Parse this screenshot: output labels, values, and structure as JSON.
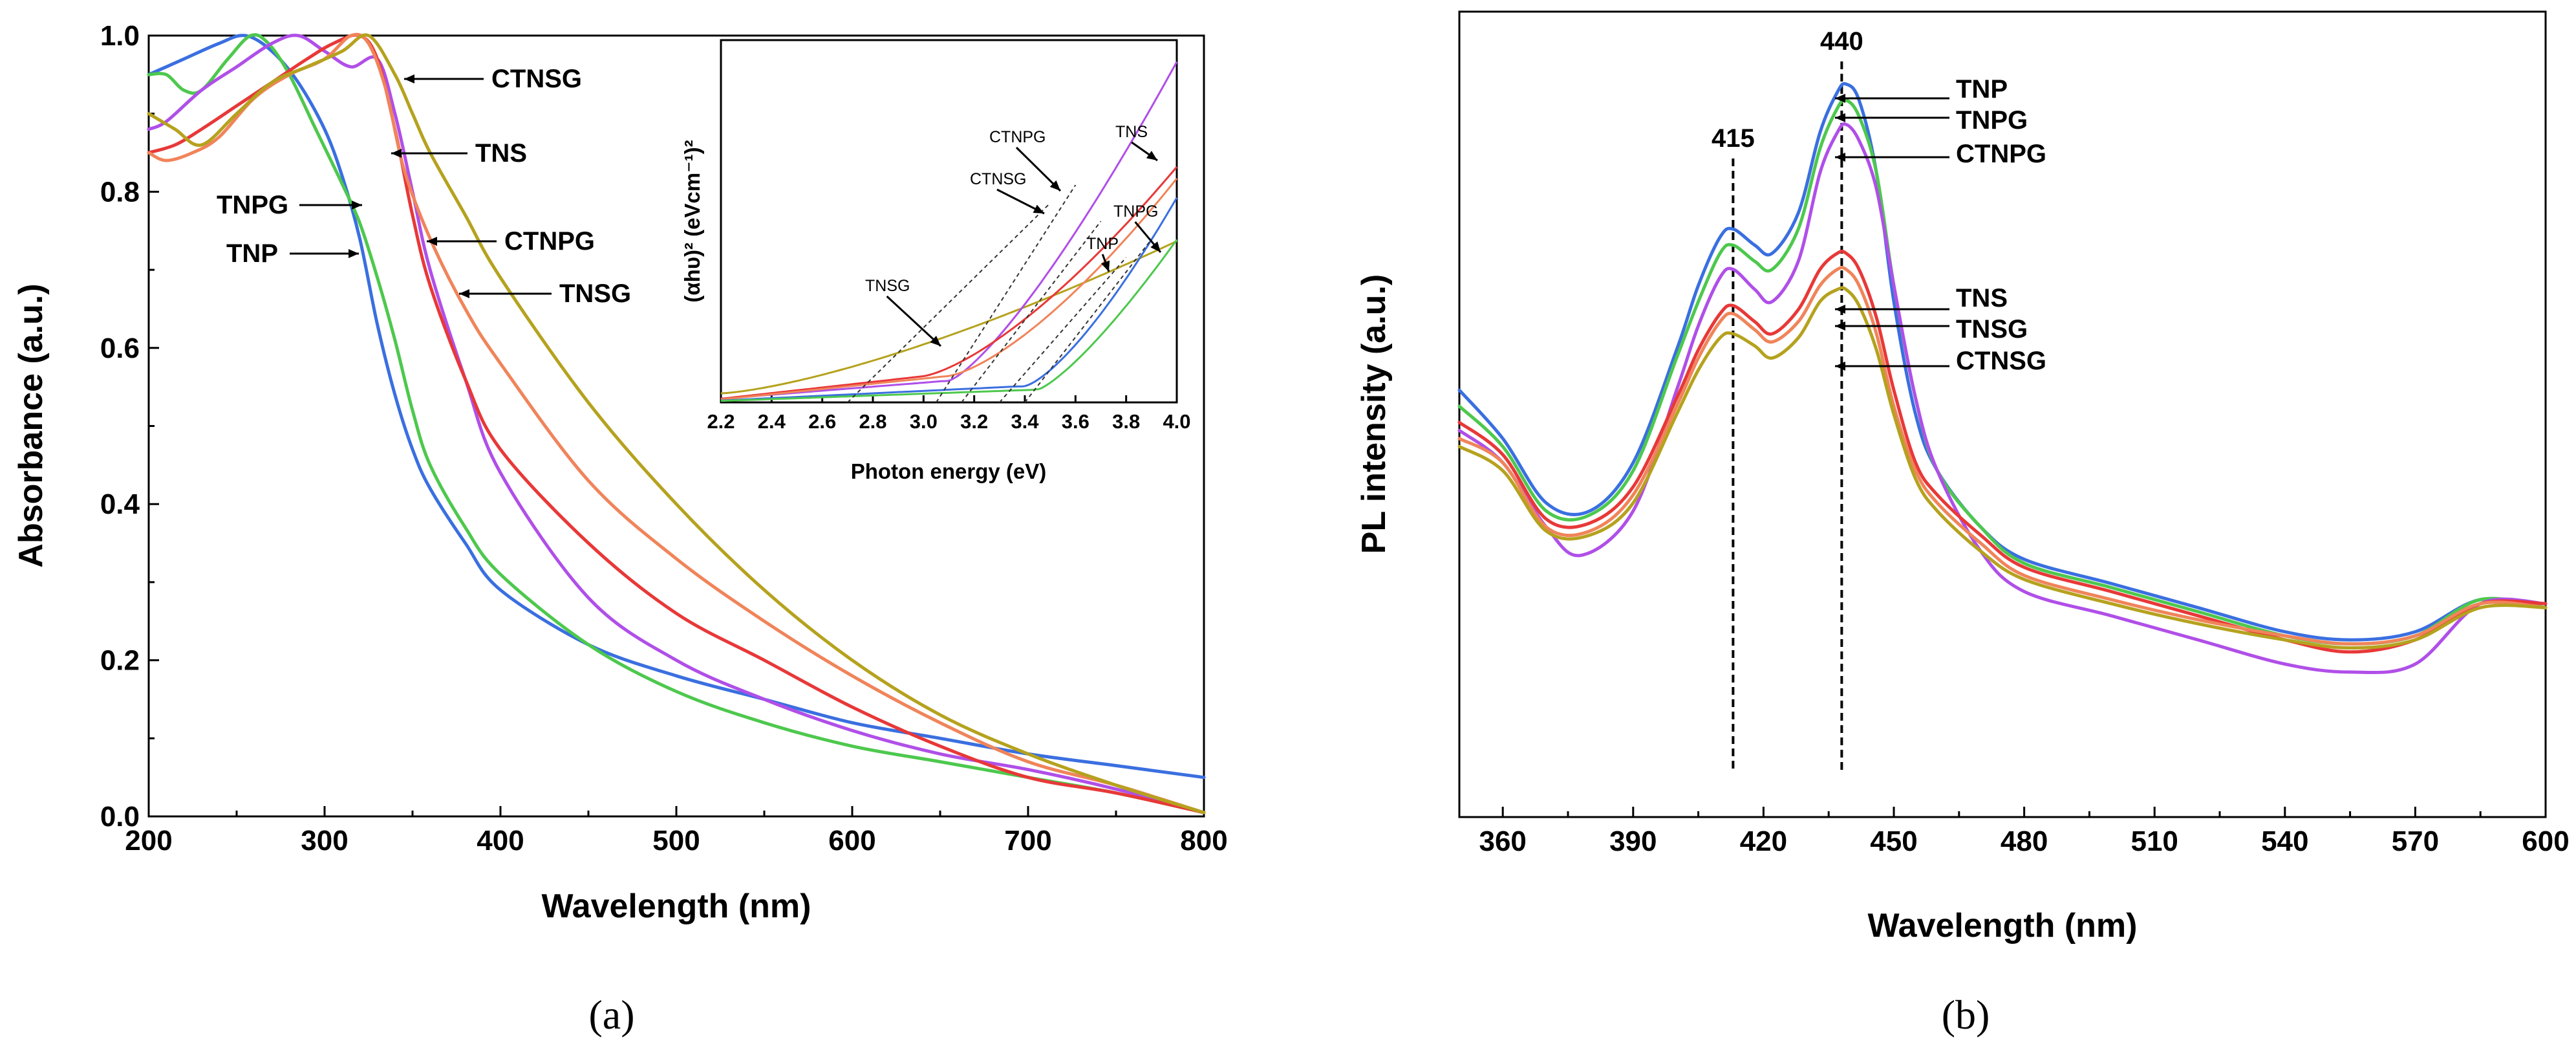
{
  "chart_data": [
    {
      "id": "a",
      "type": "line",
      "caption": "(a)",
      "xlabel": "Wavelength (nm)",
      "ylabel": "Absorbance (a.u.)",
      "xlim": [
        200,
        800
      ],
      "ylim": [
        0.0,
        1.0
      ],
      "xticks": [
        200,
        300,
        400,
        500,
        600,
        700,
        800
      ],
      "yticks": [
        0.0,
        0.2,
        0.4,
        0.6,
        0.8,
        1.0
      ],
      "series": [
        {
          "name": "TNP",
          "color": "#3a6fe0",
          "x": [
            200,
            210,
            220,
            240,
            255,
            270,
            285,
            300,
            310,
            320,
            330,
            340,
            350,
            360,
            380,
            400,
            450,
            500,
            550,
            600,
            650,
            700,
            750,
            800
          ],
          "y": [
            0.95,
            0.96,
            0.97,
            0.99,
            1.0,
            0.98,
            0.94,
            0.88,
            0.82,
            0.74,
            0.63,
            0.54,
            0.47,
            0.42,
            0.35,
            0.29,
            0.22,
            0.18,
            0.15,
            0.12,
            0.1,
            0.08,
            0.065,
            0.05
          ]
        },
        {
          "name": "TNPG",
          "color": "#4dc84d",
          "x": [
            200,
            210,
            220,
            230,
            245,
            258,
            268,
            280,
            295,
            310,
            320,
            330,
            340,
            350,
            360,
            380,
            400,
            450,
            500,
            550,
            600,
            650,
            700,
            750,
            800
          ],
          "y": [
            0.95,
            0.95,
            0.93,
            0.93,
            0.97,
            1.0,
            0.99,
            0.95,
            0.88,
            0.81,
            0.76,
            0.69,
            0.61,
            0.52,
            0.45,
            0.37,
            0.31,
            0.22,
            0.16,
            0.12,
            0.09,
            0.07,
            0.05,
            0.03,
            0.005
          ]
        },
        {
          "name": "CTNPG",
          "color": "#b04fe8",
          "x": [
            200,
            210,
            230,
            250,
            270,
            285,
            300,
            315,
            330,
            340,
            350,
            360,
            380,
            400,
            450,
            500,
            550,
            600,
            650,
            700,
            750,
            800
          ],
          "y": [
            0.88,
            0.89,
            0.93,
            0.96,
            0.99,
            1.0,
            0.98,
            0.96,
            0.97,
            0.9,
            0.8,
            0.7,
            0.56,
            0.44,
            0.28,
            0.2,
            0.15,
            0.11,
            0.08,
            0.06,
            0.035,
            0.005
          ]
        },
        {
          "name": "TNS",
          "color": "#e83838",
          "x": [
            200,
            215,
            230,
            250,
            270,
            290,
            305,
            320,
            330,
            340,
            350,
            360,
            380,
            400,
            450,
            500,
            550,
            600,
            650,
            700,
            750,
            800
          ],
          "y": [
            0.85,
            0.86,
            0.88,
            0.91,
            0.94,
            0.97,
            0.99,
            1.0,
            0.97,
            0.88,
            0.77,
            0.68,
            0.56,
            0.47,
            0.35,
            0.26,
            0.2,
            0.14,
            0.09,
            0.05,
            0.03,
            0.005
          ]
        },
        {
          "name": "TNSG",
          "color": "#f0845a",
          "x": [
            200,
            210,
            225,
            240,
            260,
            280,
            300,
            315,
            325,
            335,
            345,
            360,
            380,
            400,
            450,
            500,
            550,
            600,
            650,
            700,
            750,
            800
          ],
          "y": [
            0.85,
            0.84,
            0.85,
            0.87,
            0.92,
            0.95,
            0.97,
            1.0,
            0.99,
            0.93,
            0.83,
            0.74,
            0.65,
            0.58,
            0.43,
            0.33,
            0.25,
            0.18,
            0.12,
            0.07,
            0.04,
            0.005
          ]
        },
        {
          "name": "CTNSG",
          "color": "#b5a21e",
          "x": [
            200,
            215,
            230,
            250,
            270,
            290,
            310,
            325,
            340,
            350,
            360,
            380,
            400,
            450,
            500,
            550,
            600,
            650,
            700,
            750,
            800
          ],
          "y": [
            0.9,
            0.88,
            0.86,
            0.9,
            0.94,
            0.96,
            0.98,
            1.0,
            0.95,
            0.9,
            0.85,
            0.77,
            0.69,
            0.53,
            0.4,
            0.29,
            0.2,
            0.13,
            0.08,
            0.04,
            0.005
          ]
        }
      ],
      "annotations": [
        {
          "label": "CTNSG",
          "x": 328,
          "y": 0.945
        },
        {
          "label": "TNS",
          "x": 337,
          "y": 0.848
        },
        {
          "label": "TNPG",
          "x": 320,
          "y": 0.777
        },
        {
          "label": "TNP",
          "x": 318,
          "y": 0.715
        },
        {
          "label": "CTNPG",
          "x": 358,
          "y": 0.733
        },
        {
          "label": "TNSG",
          "x": 370,
          "y": 0.667
        }
      ],
      "inset": {
        "xlabel": "Photon energy (eV)",
        "ylabel": "(αhυ)² (eVcm⁻¹)²",
        "xlim": [
          2.2,
          4.0
        ],
        "xticks": [
          "2.2",
          "2.4",
          "2.6",
          "2.8",
          "3.0",
          "3.2",
          "3.4",
          "3.6",
          "3.8",
          "4.0"
        ],
        "labels": [
          "CTNPG",
          "CTNSG",
          "TNS",
          "TNPG",
          "TNP",
          "TNSG"
        ]
      }
    },
    {
      "id": "b",
      "type": "line",
      "caption": "(b)",
      "xlabel": "Wavelength (nm)",
      "ylabel": "PL intensity (a.u.)",
      "xlim": [
        350,
        600
      ],
      "ylim": [
        0,
        1
      ],
      "xticks": [
        360,
        390,
        420,
        450,
        480,
        510,
        540,
        570,
        600
      ],
      "series": [
        {
          "name": "TNP",
          "color": "#3a6fe0",
          "x": [
            350,
            360,
            370,
            380,
            390,
            400,
            405,
            410,
            413,
            418,
            422,
            428,
            433,
            437,
            439,
            442,
            446,
            450,
            455,
            460,
            470,
            480,
            500,
            520,
            540,
            555,
            570,
            585,
            600
          ],
          "y": [
            0.53,
            0.47,
            0.39,
            0.38,
            0.44,
            0.58,
            0.66,
            0.72,
            0.73,
            0.71,
            0.7,
            0.75,
            0.85,
            0.9,
            0.91,
            0.89,
            0.8,
            0.64,
            0.5,
            0.43,
            0.36,
            0.32,
            0.29,
            0.26,
            0.23,
            0.22,
            0.23,
            0.27,
            0.26
          ]
        },
        {
          "name": "TNPG",
          "color": "#4dc84d",
          "x": [
            350,
            360,
            370,
            380,
            390,
            400,
            405,
            410,
            413,
            418,
            422,
            428,
            433,
            437,
            439,
            442,
            446,
            450,
            455,
            460,
            470,
            480,
            500,
            520,
            540,
            555,
            570,
            585,
            600
          ],
          "y": [
            0.51,
            0.46,
            0.38,
            0.375,
            0.43,
            0.57,
            0.64,
            0.7,
            0.71,
            0.69,
            0.68,
            0.73,
            0.83,
            0.88,
            0.89,
            0.87,
            0.8,
            0.66,
            0.52,
            0.43,
            0.36,
            0.315,
            0.285,
            0.255,
            0.225,
            0.215,
            0.225,
            0.27,
            0.26
          ]
        },
        {
          "name": "CTNPG",
          "color": "#b04fe8",
          "x": [
            350,
            360,
            370,
            378,
            390,
            400,
            405,
            410,
            413,
            418,
            422,
            428,
            433,
            437,
            439,
            442,
            446,
            450,
            455,
            460,
            470,
            480,
            500,
            520,
            540,
            555,
            570,
            585,
            600
          ],
          "y": [
            0.48,
            0.44,
            0.36,
            0.325,
            0.38,
            0.53,
            0.61,
            0.67,
            0.68,
            0.655,
            0.64,
            0.69,
            0.8,
            0.85,
            0.86,
            0.84,
            0.78,
            0.66,
            0.52,
            0.43,
            0.33,
            0.28,
            0.25,
            0.22,
            0.19,
            0.18,
            0.19,
            0.265,
            0.265
          ]
        },
        {
          "name": "TNS",
          "color": "#e83838",
          "x": [
            350,
            360,
            370,
            380,
            390,
            400,
            405,
            410,
            413,
            418,
            422,
            428,
            433,
            437,
            439,
            442,
            446,
            450,
            455,
            460,
            470,
            480,
            500,
            520,
            540,
            555,
            570,
            585,
            600
          ],
          "y": [
            0.49,
            0.45,
            0.37,
            0.365,
            0.41,
            0.52,
            0.58,
            0.625,
            0.635,
            0.615,
            0.6,
            0.63,
            0.68,
            0.7,
            0.7,
            0.68,
            0.62,
            0.53,
            0.44,
            0.4,
            0.35,
            0.31,
            0.28,
            0.25,
            0.22,
            0.205,
            0.22,
            0.265,
            0.265
          ]
        },
        {
          "name": "TNSG",
          "color": "#f0845a",
          "x": [
            350,
            360,
            370,
            380,
            390,
            400,
            405,
            410,
            413,
            418,
            422,
            428,
            433,
            437,
            439,
            442,
            446,
            450,
            455,
            460,
            470,
            480,
            500,
            520,
            540,
            555,
            570,
            585,
            600
          ],
          "y": [
            0.47,
            0.44,
            0.36,
            0.355,
            0.4,
            0.51,
            0.57,
            0.615,
            0.625,
            0.605,
            0.59,
            0.615,
            0.66,
            0.68,
            0.68,
            0.66,
            0.6,
            0.51,
            0.43,
            0.39,
            0.34,
            0.3,
            0.27,
            0.245,
            0.225,
            0.215,
            0.225,
            0.265,
            0.26
          ]
        },
        {
          "name": "CTNSG",
          "color": "#b5a21e",
          "x": [
            350,
            360,
            370,
            380,
            390,
            400,
            405,
            410,
            413,
            418,
            422,
            428,
            433,
            437,
            439,
            442,
            446,
            450,
            455,
            460,
            470,
            480,
            500,
            520,
            540,
            555,
            570,
            585,
            600
          ],
          "y": [
            0.46,
            0.43,
            0.355,
            0.35,
            0.39,
            0.5,
            0.555,
            0.595,
            0.6,
            0.585,
            0.57,
            0.595,
            0.64,
            0.655,
            0.655,
            0.635,
            0.58,
            0.5,
            0.42,
            0.38,
            0.33,
            0.295,
            0.265,
            0.24,
            0.22,
            0.21,
            0.22,
            0.26,
            0.26
          ]
        }
      ],
      "peaks": [
        {
          "label": "415",
          "x": 413
        },
        {
          "label": "440",
          "x": 438
        }
      ],
      "annotations": [
        {
          "label": "TNP",
          "x": 438,
          "y": 0.91
        },
        {
          "label": "TNPG",
          "x": 438,
          "y": 0.885
        },
        {
          "label": "CTNPG",
          "x": 438,
          "y": 0.855
        },
        {
          "label": "TNS",
          "x": 438,
          "y": 0.705
        },
        {
          "label": "TNSG",
          "x": 438,
          "y": 0.685
        },
        {
          "label": "CTNSG",
          "x": 438,
          "y": 0.66
        }
      ]
    }
  ]
}
